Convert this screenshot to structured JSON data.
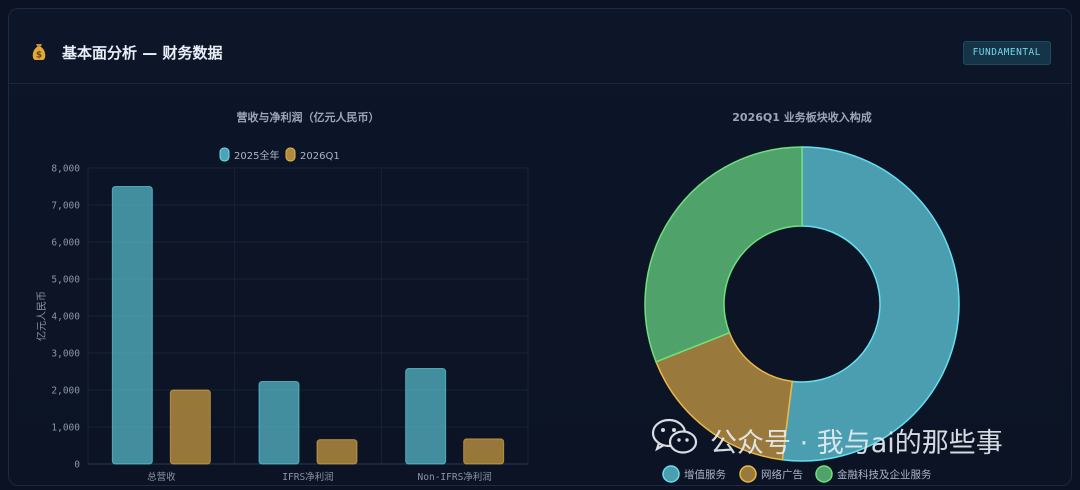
{
  "header": {
    "title": "基本面分析 — 财务数据",
    "badge": "FUNDAMENTAL",
    "icon": "money-bag-icon"
  },
  "chart_data": [
    {
      "type": "bar",
      "title": "营收与净利润（亿元人民币）",
      "xlabel": "",
      "ylabel": "亿元人民币",
      "categories": [
        "总营收",
        "IFRS净利润",
        "Non-IFRS净利润"
      ],
      "series": [
        {
          "name": "2025全年",
          "values": [
            7500,
            2230,
            2580
          ],
          "color": "#4ea3b4"
        },
        {
          "name": "2026Q1",
          "values": [
            2000,
            660,
            680
          ],
          "color": "#b08a3e"
        }
      ],
      "ylim": [
        0,
        8000
      ],
      "yticks": [
        "0",
        "1,000",
        "2,000",
        "3,000",
        "4,000",
        "5,000",
        "6,000",
        "7,000",
        "8,000"
      ],
      "grid": true,
      "legend": "top-center"
    },
    {
      "type": "pie",
      "title": "2026Q1 业务板块收入构成",
      "labels": [
        "增值服务",
        "网络广告",
        "金融科技及企业服务"
      ],
      "values": [
        52,
        17,
        31
      ],
      "colors": [
        "#4a9eb0",
        "#9a7a3c",
        "#4fa36a"
      ],
      "edge_colors": [
        "#66dff0",
        "#e8b84a",
        "#6fe07e"
      ],
      "legend": "bottom-center"
    }
  ],
  "watermark": {
    "text": "公众号 · 我与ai的那些事",
    "icon": "wechat-icon"
  }
}
